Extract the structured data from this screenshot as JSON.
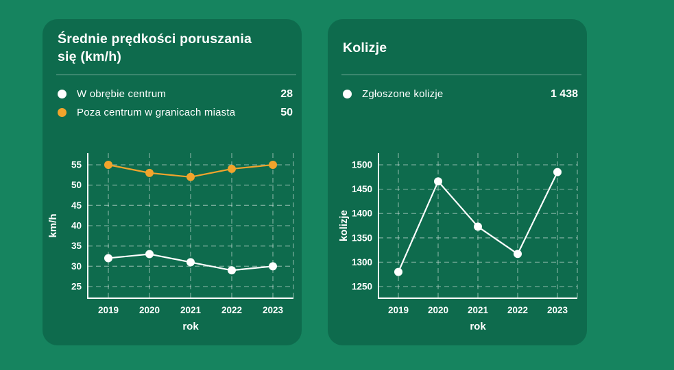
{
  "colors": {
    "background": "#16845F",
    "card": "#0E6B4D",
    "accent_orange": "#F1A42C",
    "text": "#FFFFFF"
  },
  "chart_data": [
    {
      "type": "line",
      "title": "Średnie prędkości poruszania się (km/h)",
      "categories": [
        "2019",
        "2020",
        "2021",
        "2022",
        "2023"
      ],
      "series": [
        {
          "name": "W obrębie centrum",
          "color": "#FFFFFF",
          "values": [
            32,
            33,
            31,
            29,
            30
          ],
          "legend_value": "28"
        },
        {
          "name": "Poza centrum w granicach miasta",
          "color": "#F1A42C",
          "values": [
            55,
            53,
            52,
            54,
            55
          ],
          "legend_value": "50"
        }
      ],
      "xlabel": "rok",
      "ylabel": "km/h",
      "yticks": [
        25,
        30,
        35,
        40,
        45,
        50,
        55
      ],
      "ylim": [
        25,
        55
      ],
      "grid": true,
      "legend_position": "top-left"
    },
    {
      "type": "line",
      "title": "Kolizje",
      "categories": [
        "2019",
        "2020",
        "2021",
        "2022",
        "2023"
      ],
      "series": [
        {
          "name": "Zgłoszone kolizje",
          "color": "#FFFFFF",
          "values": [
            1280,
            1466,
            1373,
            1317,
            1485
          ],
          "legend_value": "1 438"
        }
      ],
      "xlabel": "rok",
      "ylabel": "kolizje",
      "yticks": [
        1250,
        1300,
        1350,
        1400,
        1450,
        1500
      ],
      "ylim": [
        1250,
        1500
      ],
      "grid": true,
      "legend_position": "top-left"
    }
  ]
}
